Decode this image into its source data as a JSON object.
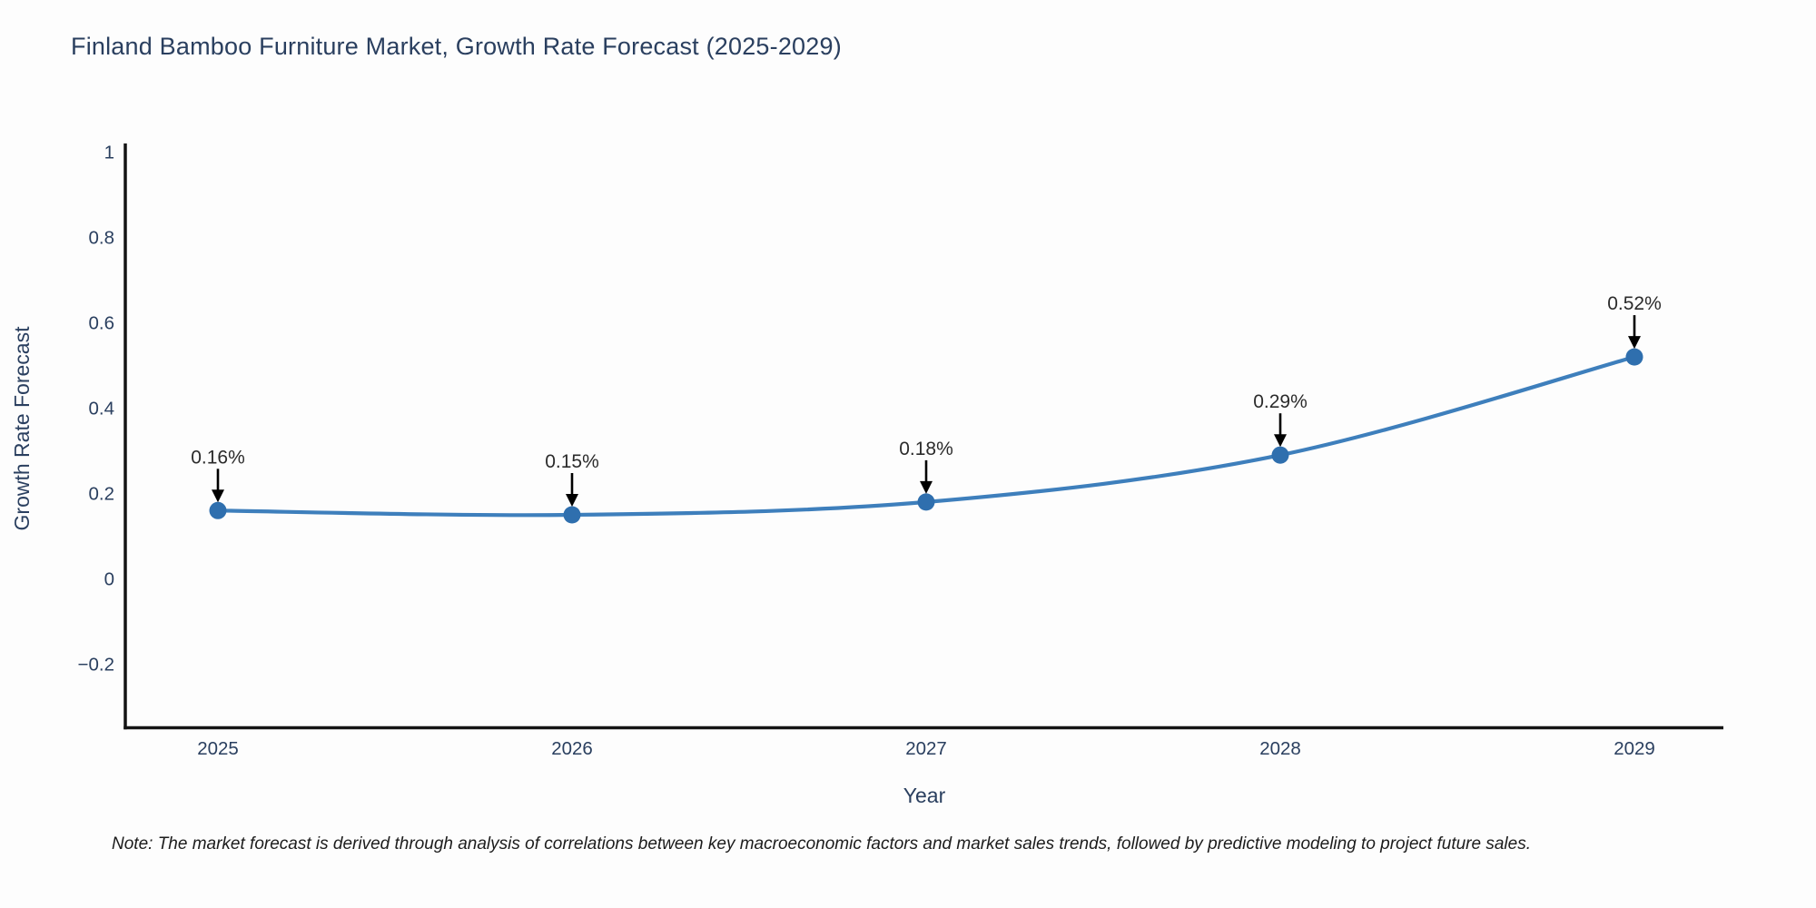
{
  "title": "Finland Bamboo Furniture Market, Growth Rate Forecast (2025-2029)",
  "note": "Note: The market forecast is derived through analysis of correlations between key macroeconomic factors and market sales trends, followed by predictive modeling to project future sales.",
  "chart_data": {
    "type": "line",
    "title": "Finland Bamboo Furniture Market, Growth Rate Forecast (2025-2029)",
    "xlabel": "Year",
    "ylabel": "Growth Rate Forecast",
    "categories": [
      "2025",
      "2026",
      "2027",
      "2028",
      "2029"
    ],
    "values": [
      0.16,
      0.15,
      0.18,
      0.29,
      0.52
    ],
    "point_labels": [
      "0.16%",
      "0.15%",
      "0.18%",
      "0.29%",
      "0.52%"
    ],
    "ytick_values": [
      1,
      0.8,
      0.6,
      0.4,
      0.2,
      0,
      -0.2
    ],
    "ytick_labels": [
      "1",
      "0.8",
      "0.6",
      "0.4",
      "0.2",
      "0",
      "−0.2"
    ],
    "ylim": [
      -0.35,
      1.04
    ],
    "grid": false,
    "legend_position": "none",
    "line_color": "#3e7fbc",
    "marker_color": "#2f6fae",
    "arrow_color": "#000000",
    "axis_line_color": "#141414",
    "tick_text_color": "#2a3f5f",
    "annotation_text_color": "#2b2b2b"
  }
}
